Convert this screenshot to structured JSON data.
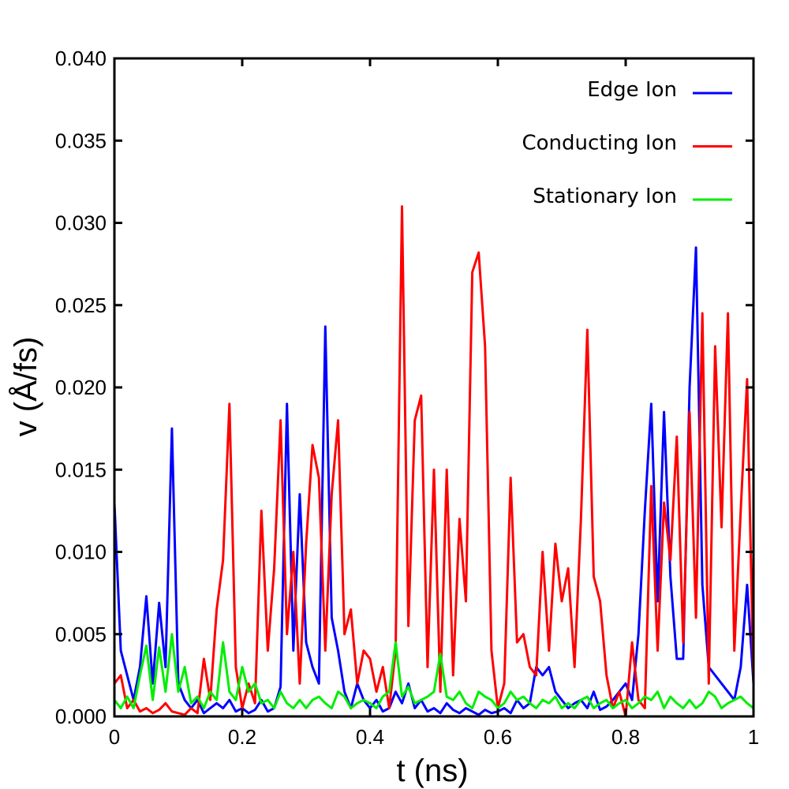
{
  "chart_data": {
    "type": "line",
    "x_label": "t (ns)",
    "y_label": "v (Å/fs)",
    "xlim": [
      0,
      1
    ],
    "xticks": [
      0,
      0.2,
      0.4,
      0.6,
      0.8,
      1
    ],
    "ylim": [
      0,
      0.04
    ],
    "yticks": [
      {
        "value": 0,
        "label": "0.000"
      },
      {
        "value": 0.005,
        "label": "0.005"
      },
      {
        "value": 0.01,
        "label": "0.010"
      },
      {
        "value": 0.015,
        "label": "0.015"
      },
      {
        "value": 0.02,
        "label": "0.020"
      },
      {
        "value": 0.025,
        "label": "0.025"
      },
      {
        "value": 0.03,
        "label": "0.030"
      },
      {
        "value": 0.035,
        "label": "0.035"
      },
      {
        "value": 0.04,
        "label": "0.040"
      }
    ],
    "grid": false,
    "legend": "upper right",
    "x": [
      0,
      0.01,
      0.02,
      0.03,
      0.04,
      0.05,
      0.06,
      0.07,
      0.08,
      0.09,
      0.1,
      0.11,
      0.12,
      0.13,
      0.14,
      0.15,
      0.16,
      0.17,
      0.18,
      0.19,
      0.2,
      0.21,
      0.22,
      0.23,
      0.24,
      0.25,
      0.26,
      0.27,
      0.28,
      0.29,
      0.3,
      0.31,
      0.32,
      0.33,
      0.34,
      0.35,
      0.36,
      0.37,
      0.38,
      0.39,
      0.4,
      0.41,
      0.42,
      0.43,
      0.44,
      0.45,
      0.46,
      0.47,
      0.48,
      0.49,
      0.5,
      0.51,
      0.52,
      0.53,
      0.54,
      0.55,
      0.56,
      0.57,
      0.58,
      0.59,
      0.6,
      0.61,
      0.62,
      0.63,
      0.64,
      0.65,
      0.66,
      0.67,
      0.68,
      0.69,
      0.7,
      0.71,
      0.72,
      0.73,
      0.74,
      0.75,
      0.76,
      0.77,
      0.78,
      0.79,
      0.8,
      0.81,
      0.82,
      0.83,
      0.84,
      0.85,
      0.86,
      0.87,
      0.88,
      0.89,
      0.9,
      0.91,
      0.92,
      0.93,
      0.94,
      0.95,
      0.96,
      0.97,
      0.98,
      0.99,
      1
    ],
    "series": [
      {
        "name": "Edge Ion",
        "color": "#0000ff",
        "values": [
          0.013,
          0.004,
          0.0025,
          0.001,
          0.003,
          0.0073,
          0.002,
          0.0069,
          0.003,
          0.0175,
          0.002,
          0.001,
          0.0005,
          0.001,
          0.0002,
          0.0005,
          0.0008,
          0.0005,
          0.001,
          0.0003,
          0.0005,
          0.0002,
          0.0004,
          0.001,
          0.0003,
          0.0005,
          0.0018,
          0.019,
          0.004,
          0.0135,
          0.0045,
          0.003,
          0.002,
          0.0237,
          0.006,
          0.004,
          0.0015,
          0.0005,
          0.002,
          0.001,
          0.0005,
          0.001,
          0.0003,
          0.0005,
          0.0015,
          0.0008,
          0.002,
          0.0005,
          0.001,
          0.0003,
          0.0005,
          0.0002,
          0.0008,
          0.0004,
          0.0002,
          0.0005,
          0.0003,
          0.0001,
          0.0004,
          0.0002,
          0.0003,
          0.0005,
          0.0002,
          0.001,
          0.0005,
          0.0008,
          0.003,
          0.0025,
          0.003,
          0.0015,
          0.001,
          0.0005,
          0.0008,
          0.001,
          0.0005,
          0.0015,
          0.0004,
          0.0006,
          0.001,
          0.0015,
          0.002,
          0.001,
          0.005,
          0.0125,
          0.019,
          0.007,
          0.0185,
          0.0085,
          0.0035,
          0.0035,
          0.02,
          0.0285,
          0.008,
          0.003,
          0.0025,
          0.002,
          0.0015,
          0.001,
          0.003,
          0.008,
          0.002
        ]
      },
      {
        "name": "Conducting Ion",
        "color": "#ff0000",
        "values": [
          0.002,
          0.0025,
          0.0005,
          0.001,
          0.0003,
          0.0005,
          0.0002,
          0.0004,
          0.0008,
          0.0003,
          0.0002,
          0.0001,
          0.0005,
          0.0002,
          0.0035,
          0.001,
          0.0065,
          0.0095,
          0.019,
          0.003,
          0.0005,
          0.002,
          0.0008,
          0.0125,
          0.004,
          0.009,
          0.018,
          0.005,
          0.01,
          0.002,
          0.0105,
          0.0165,
          0.0145,
          0.004,
          0.0135,
          0.018,
          0.005,
          0.0065,
          0.002,
          0.004,
          0.0035,
          0.0015,
          0.003,
          0.0005,
          0.004,
          0.031,
          0.0055,
          0.018,
          0.0195,
          0.003,
          0.015,
          0.0015,
          0.015,
          0.0025,
          0.012,
          0.007,
          0.027,
          0.0282,
          0.0225,
          0.004,
          0.0005,
          0.002,
          0.0145,
          0.0045,
          0.005,
          0.003,
          0.0025,
          0.01,
          0.004,
          0.0105,
          0.007,
          0.009,
          0.003,
          0.012,
          0.0235,
          0.0085,
          0.007,
          0.0025,
          0.0005,
          0.0015,
          0,
          0.0045,
          0.001,
          0.0005,
          0.014,
          0.004,
          0.013,
          0.0095,
          0.017,
          0.0045,
          0.0185,
          0.006,
          0.0245,
          0.002,
          0.0225,
          0.0115,
          0.0245,
          0.004,
          0.0125,
          0.0205,
          0.002
        ]
      },
      {
        "name": "Stationary Ion",
        "color": "#00ee00",
        "values": [
          0.001,
          0.0005,
          0.0012,
          0.0005,
          0.0025,
          0.0043,
          0.001,
          0.0042,
          0.0015,
          0.005,
          0.0015,
          0.003,
          0.0008,
          0.0012,
          0.0005,
          0.0015,
          0.001,
          0.0045,
          0.0015,
          0.001,
          0.003,
          0.0015,
          0.002,
          0.0008,
          0.001,
          0.0005,
          0.0015,
          0.0008,
          0.0005,
          0.001,
          0.0005,
          0.001,
          0.0012,
          0.0008,
          0.0005,
          0.0015,
          0.0012,
          0.0005,
          0.0008,
          0.001,
          0.0008,
          0.0005,
          0.0012,
          0.0015,
          0.0045,
          0.0012,
          0.0018,
          0.0008,
          0.001,
          0.0012,
          0.0015,
          0.0038,
          0.0012,
          0.001,
          0.0015,
          0.0008,
          0.0005,
          0.0015,
          0.0012,
          0.001,
          0.0005,
          0.0008,
          0.0015,
          0.001,
          0.0012,
          0.0008,
          0.0005,
          0.001,
          0.0008,
          0.0012,
          0.0005,
          0.0008,
          0.0005,
          0.001,
          0.0012,
          0.0005,
          0.0008,
          0.001,
          0.0005,
          0.0008,
          0.001,
          0.0005,
          0.0008,
          0.0012,
          0.001,
          0.0015,
          0.0005,
          0.0012,
          0.0008,
          0.0005,
          0.001,
          0.0005,
          0.0008,
          0.0015,
          0.0012,
          0.0005,
          0.0008,
          0.001,
          0.0012,
          0.0008,
          0.0005
        ]
      }
    ]
  }
}
